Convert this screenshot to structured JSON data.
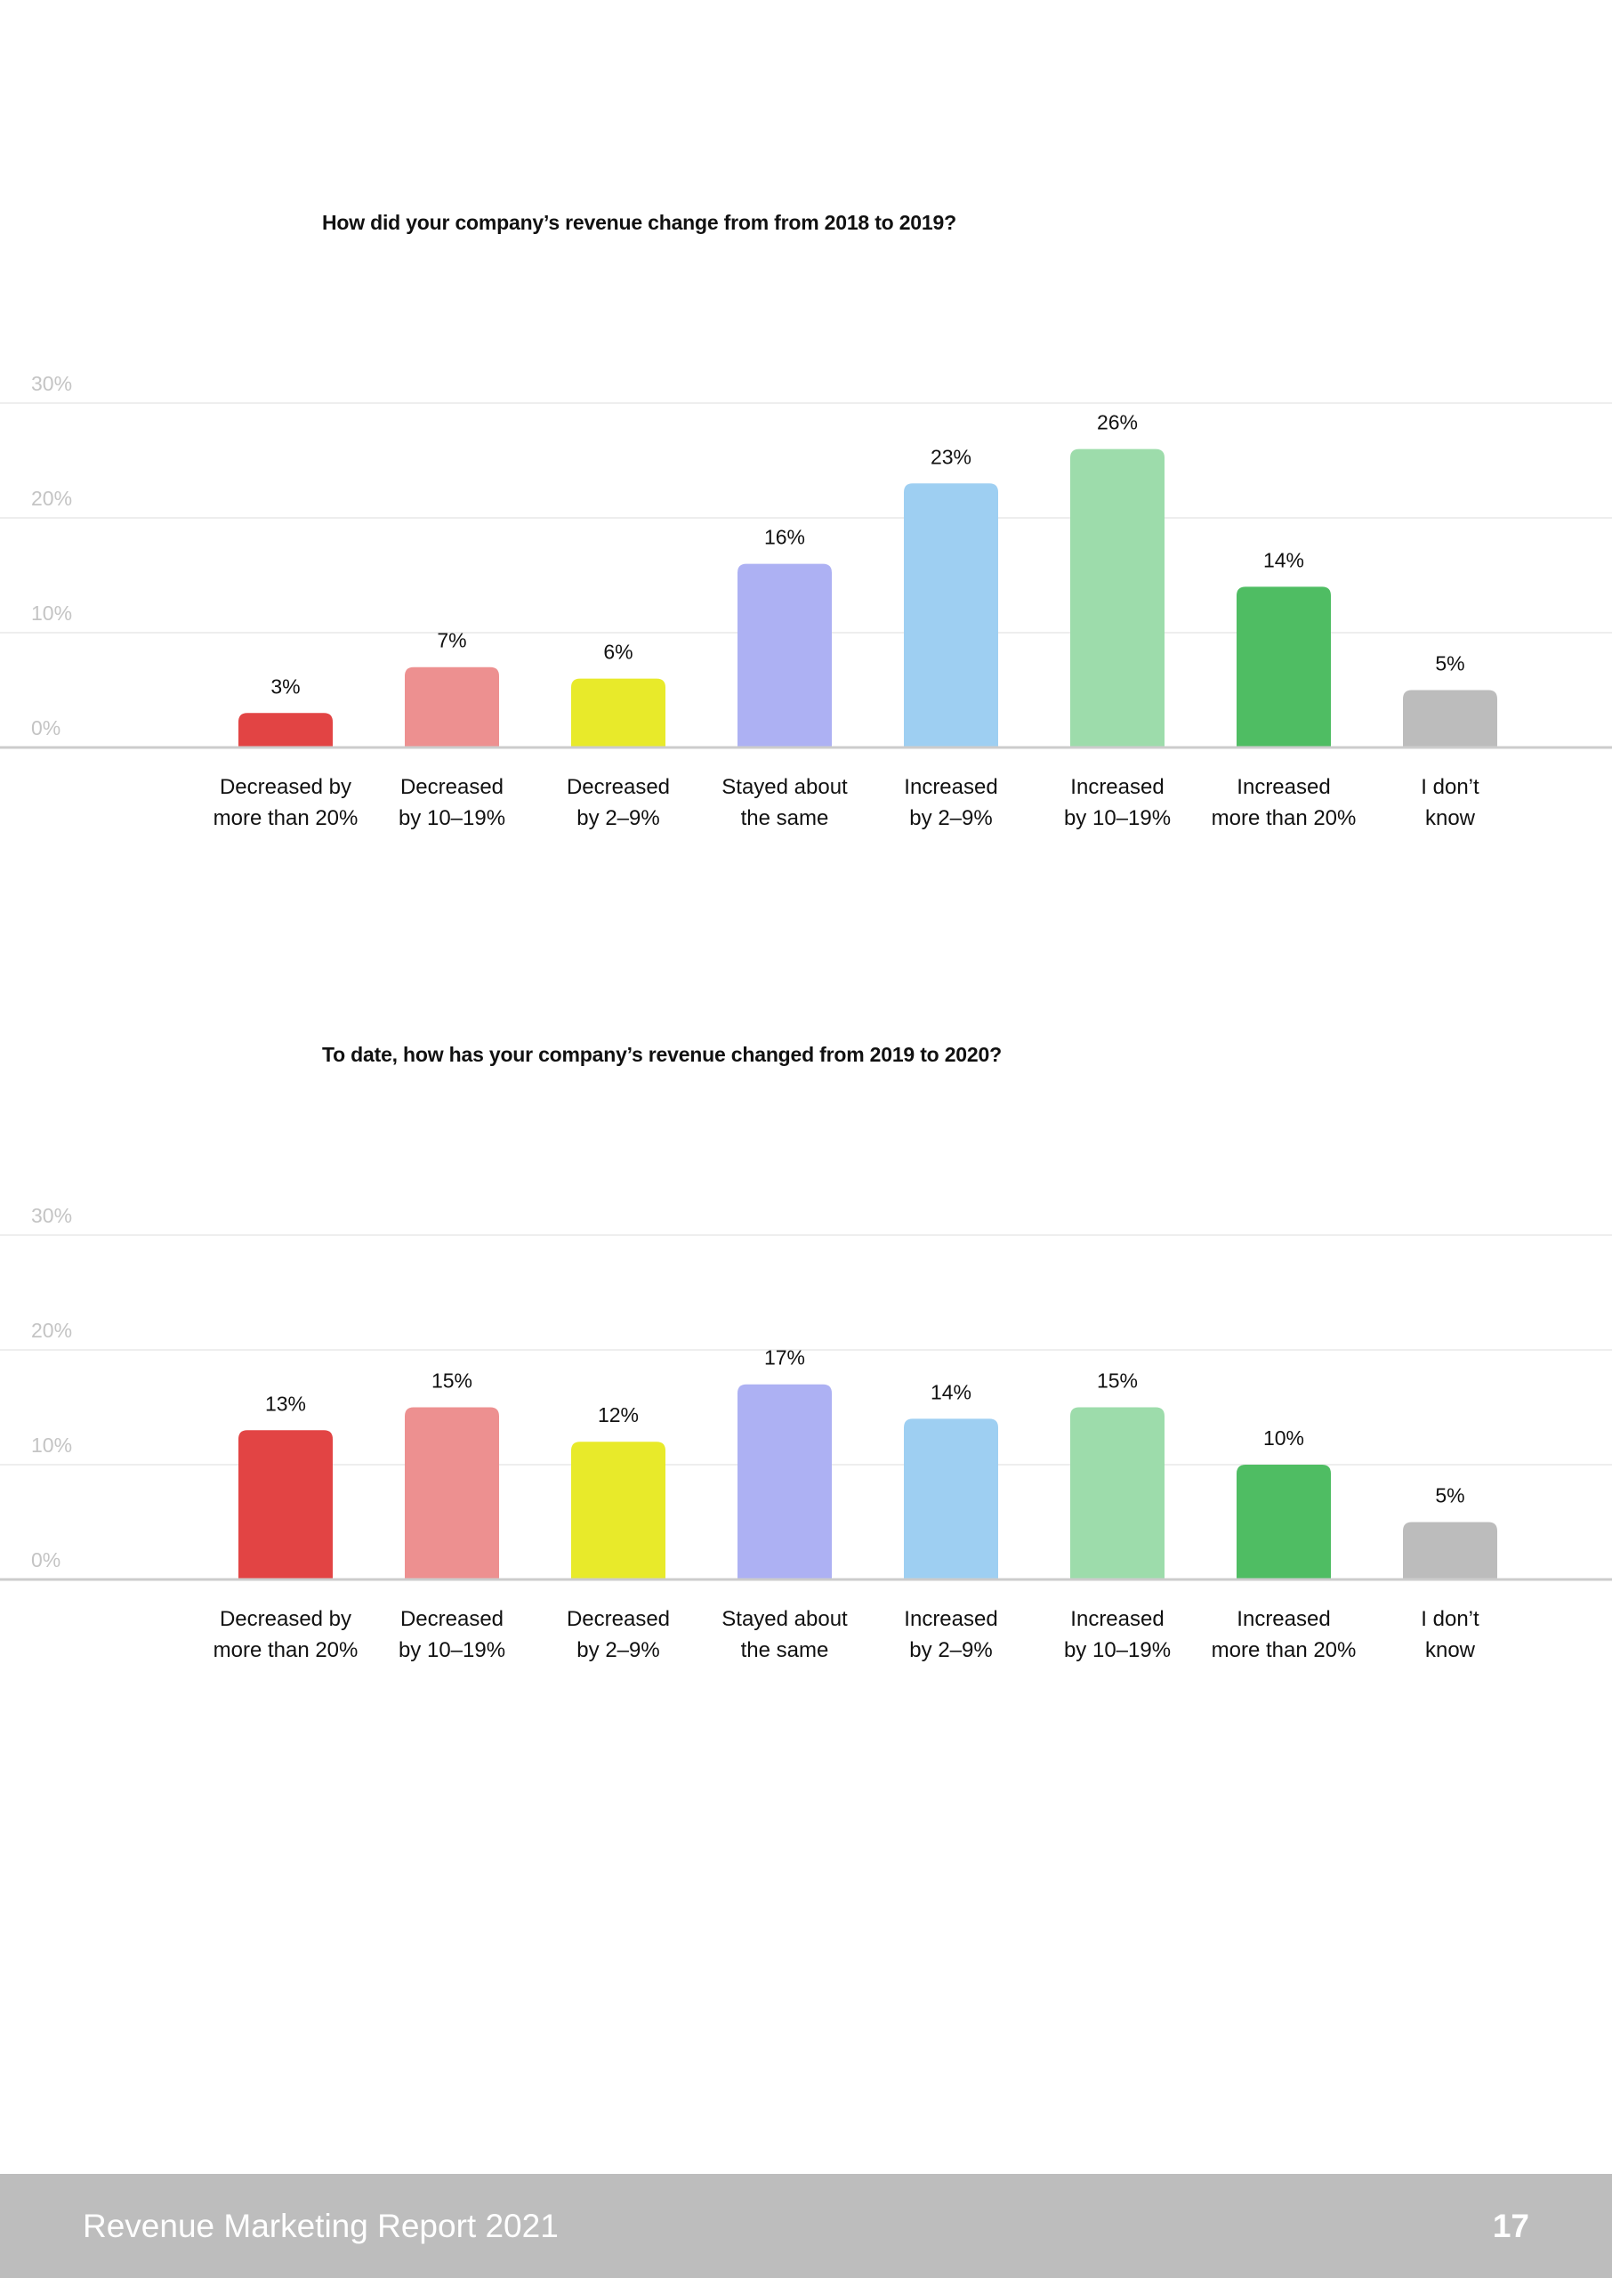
{
  "chart_data": [
    {
      "type": "bar",
      "title": "How did your company’s revenue change from from 2018 to 2019?",
      "categories": [
        [
          "Decreased by",
          "more than 20%"
        ],
        [
          "Decreased",
          "by 10–19%"
        ],
        [
          "Decreased",
          "by 2–9%"
        ],
        [
          "Stayed about",
          "the same"
        ],
        [
          "Increased",
          "by 2–9%"
        ],
        [
          "Increased",
          "by 10–19%"
        ],
        [
          "Increased",
          "more than 20%"
        ],
        [
          "I don’t",
          "know"
        ]
      ],
      "values": [
        3,
        7,
        6,
        16,
        23,
        26,
        14,
        5
      ],
      "value_labels": [
        "3%",
        "7%",
        "6%",
        "16%",
        "23%",
        "26%",
        "14%",
        "5%"
      ],
      "yticks": [
        0,
        10,
        20,
        30
      ],
      "ytick_labels": [
        "0%",
        "10%",
        "20%",
        "30%"
      ],
      "ylim": [
        0,
        30
      ],
      "grid": true,
      "xlabel": "",
      "ylabel": ""
    },
    {
      "type": "bar",
      "title": "To date, how has your company’s revenue changed from 2019 to 2020?",
      "categories": [
        [
          "Decreased by",
          "more than 20%"
        ],
        [
          "Decreased",
          "by 10–19%"
        ],
        [
          "Decreased",
          "by 2–9%"
        ],
        [
          "Stayed about",
          "the same"
        ],
        [
          "Increased",
          "by 2–9%"
        ],
        [
          "Increased",
          "by 10–19%"
        ],
        [
          "Increased",
          "more than 20%"
        ],
        [
          "I don’t",
          "know"
        ]
      ],
      "values": [
        13,
        15,
        12,
        17,
        14,
        15,
        10,
        5
      ],
      "value_labels": [
        "13%",
        "15%",
        "12%",
        "17%",
        "14%",
        "15%",
        "10%",
        "5%"
      ],
      "yticks": [
        0,
        10,
        20,
        30
      ],
      "ytick_labels": [
        "0%",
        "10%",
        "20%",
        "30%"
      ],
      "ylim": [
        0,
        30
      ],
      "grid": true,
      "xlabel": "",
      "ylabel": ""
    }
  ],
  "bar_colors": [
    "#e24444",
    "#ed9090",
    "#e8ea2a",
    "#adb1f3",
    "#9ecff2",
    "#9ddcab",
    "#4fbd63",
    "#bcbcbc"
  ],
  "colors": {
    "grid": "#eeeeee",
    "axis": "#cccccc",
    "tick_label": "#c4c4c4",
    "text": "#111111",
    "footer_bg": "#bdbdbd",
    "footer_text": "#ffffff"
  },
  "footer": {
    "title": "Revenue Marketing Report 2021",
    "page_number": "17"
  }
}
